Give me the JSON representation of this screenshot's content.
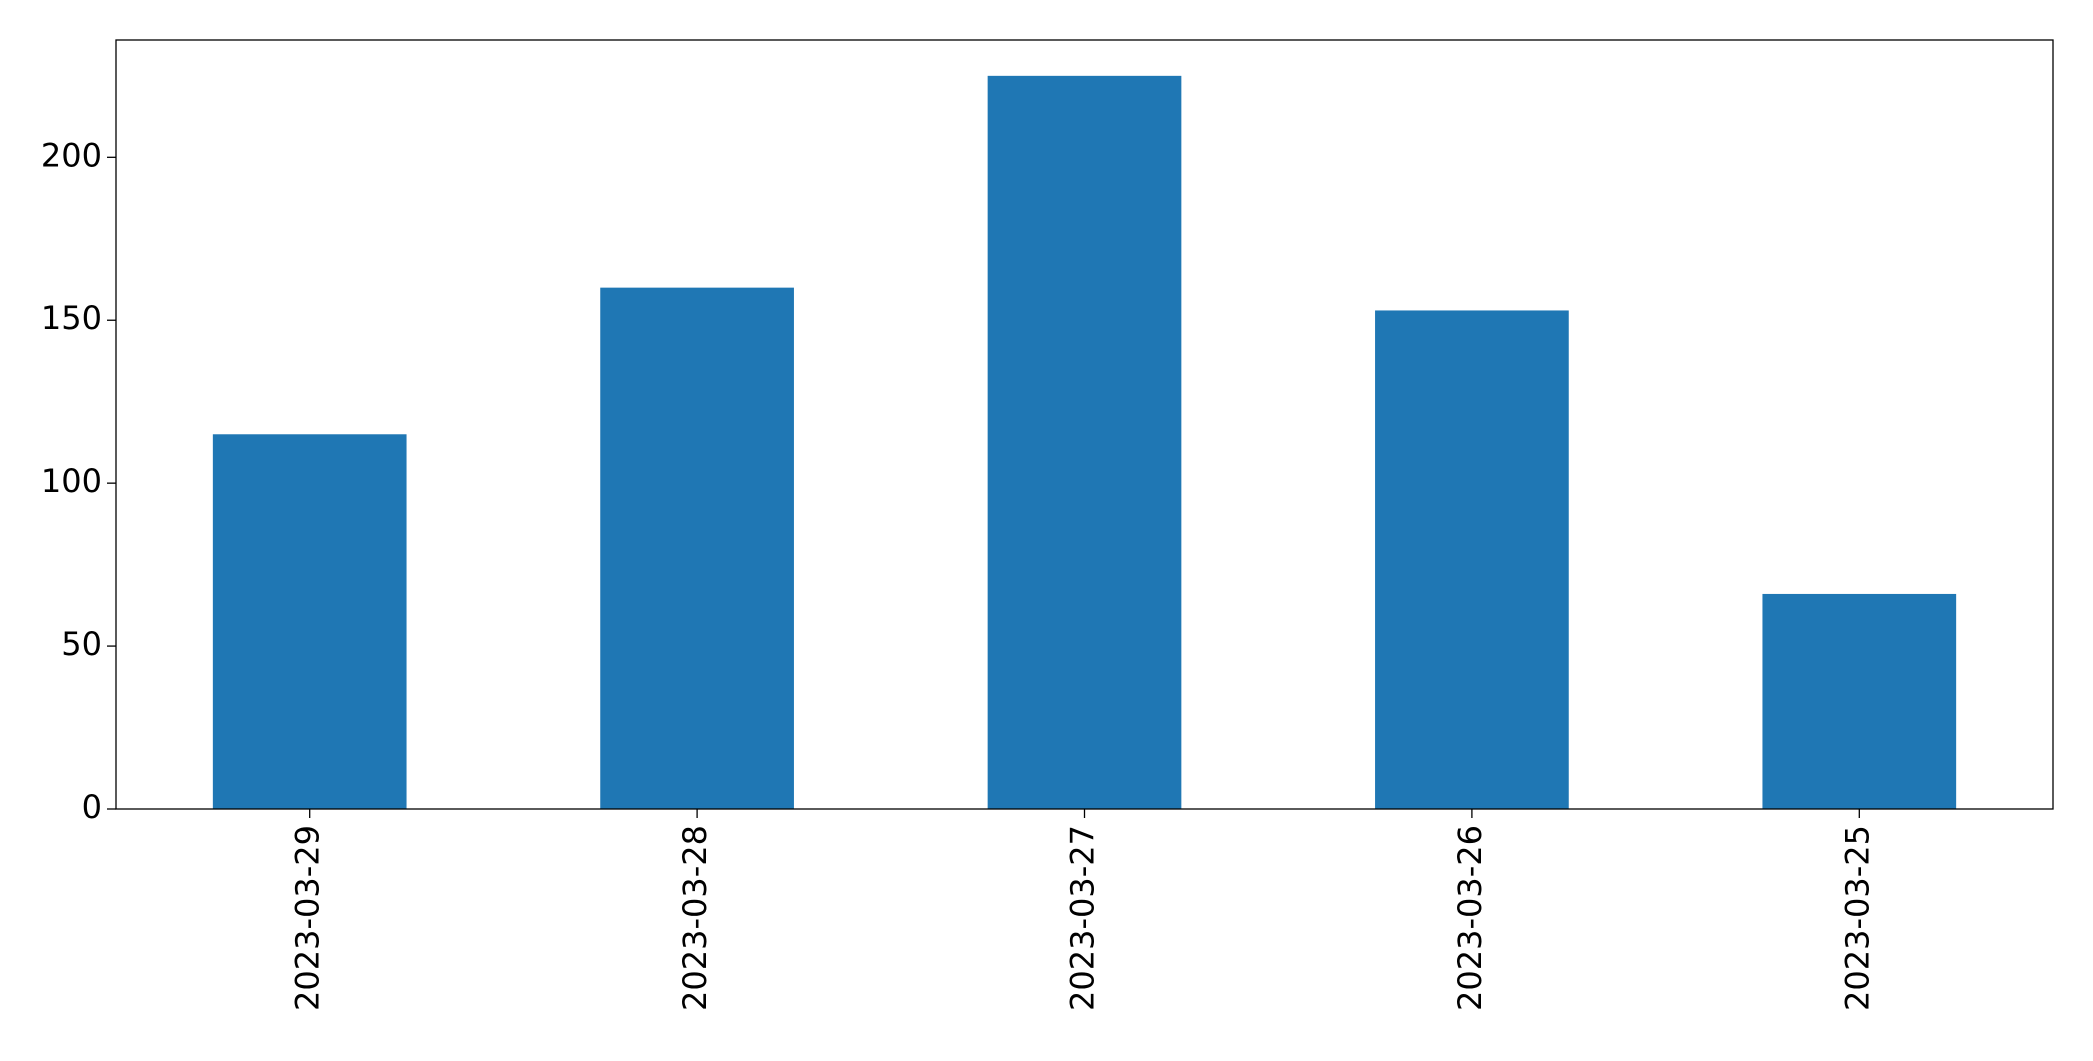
{
  "chart_data": {
    "type": "bar",
    "categories": [
      "2023-03-29",
      "2023-03-28",
      "2023-03-27",
      "2023-03-26",
      "2023-03-25"
    ],
    "values": [
      115,
      160,
      225,
      153,
      66
    ],
    "color": "#1f77b4",
    "ylim": [
      0,
      236
    ],
    "yticks": [
      0,
      50,
      100,
      150,
      200
    ],
    "grid": false
  }
}
